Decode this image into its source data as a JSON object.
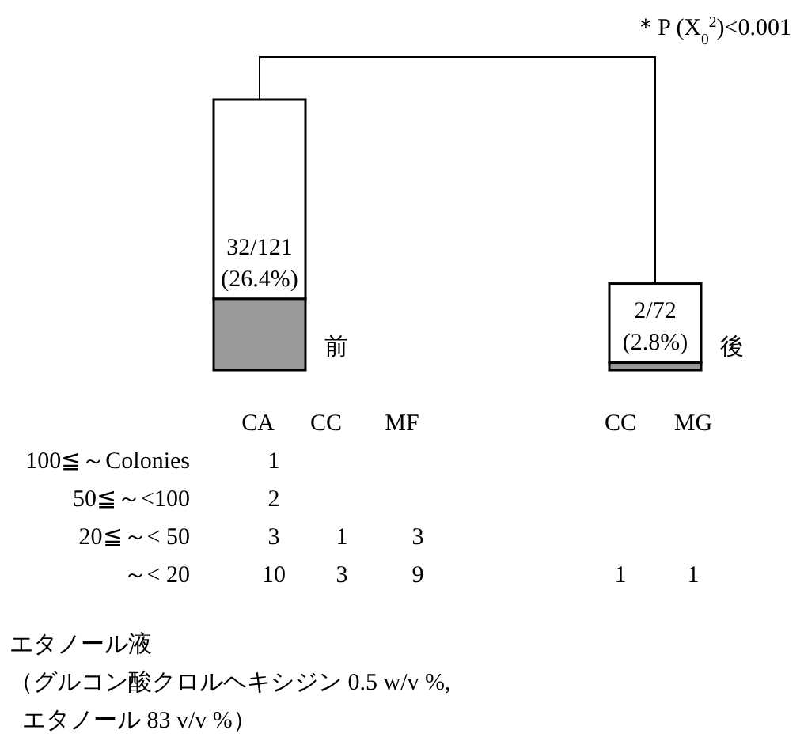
{
  "chart_data": [
    {
      "type": "bar",
      "stacked": true,
      "categories": [
        null,
        null
      ],
      "series": [
        {
          "color": "#9a9a9a",
          "values": [
            26.4,
            2.8
          ],
          "value_labels": [
            "32/121 (26.4%)",
            "2/72 (2.8%)"
          ]
        },
        {
          "color": "#ffffff",
          "values": [
            73.6,
            29.2
          ]
        }
      ],
      "annotations": [
        "前",
        "後",
        "＊P (X$_{0}$$^{2}$)<0.001"
      ]
    },
    {
      "type": "heatmap",
      "data_labels": true,
      "categories": [
        "CA",
        "CC",
        "MF",
        "CC",
        "MG"
      ],
      "y_categories": [
        "100≦～Colonies",
        "50≦～<100",
        "20≦～< 50",
        "～< 20"
      ],
      "cells": [
        [
          1,
          null,
          null,
          null,
          null
        ],
        [
          2,
          null,
          null,
          null,
          null
        ],
        [
          3,
          1,
          3,
          null,
          null
        ],
        [
          10,
          3,
          9,
          1,
          1
        ]
      ],
      "annotations": [
        "エタノール液",
        "（グルコン酸クロルヘキシジン 0.5 w/v %,",
        "エタノール 83 v/v %）"
      ]
    }
  ]
}
